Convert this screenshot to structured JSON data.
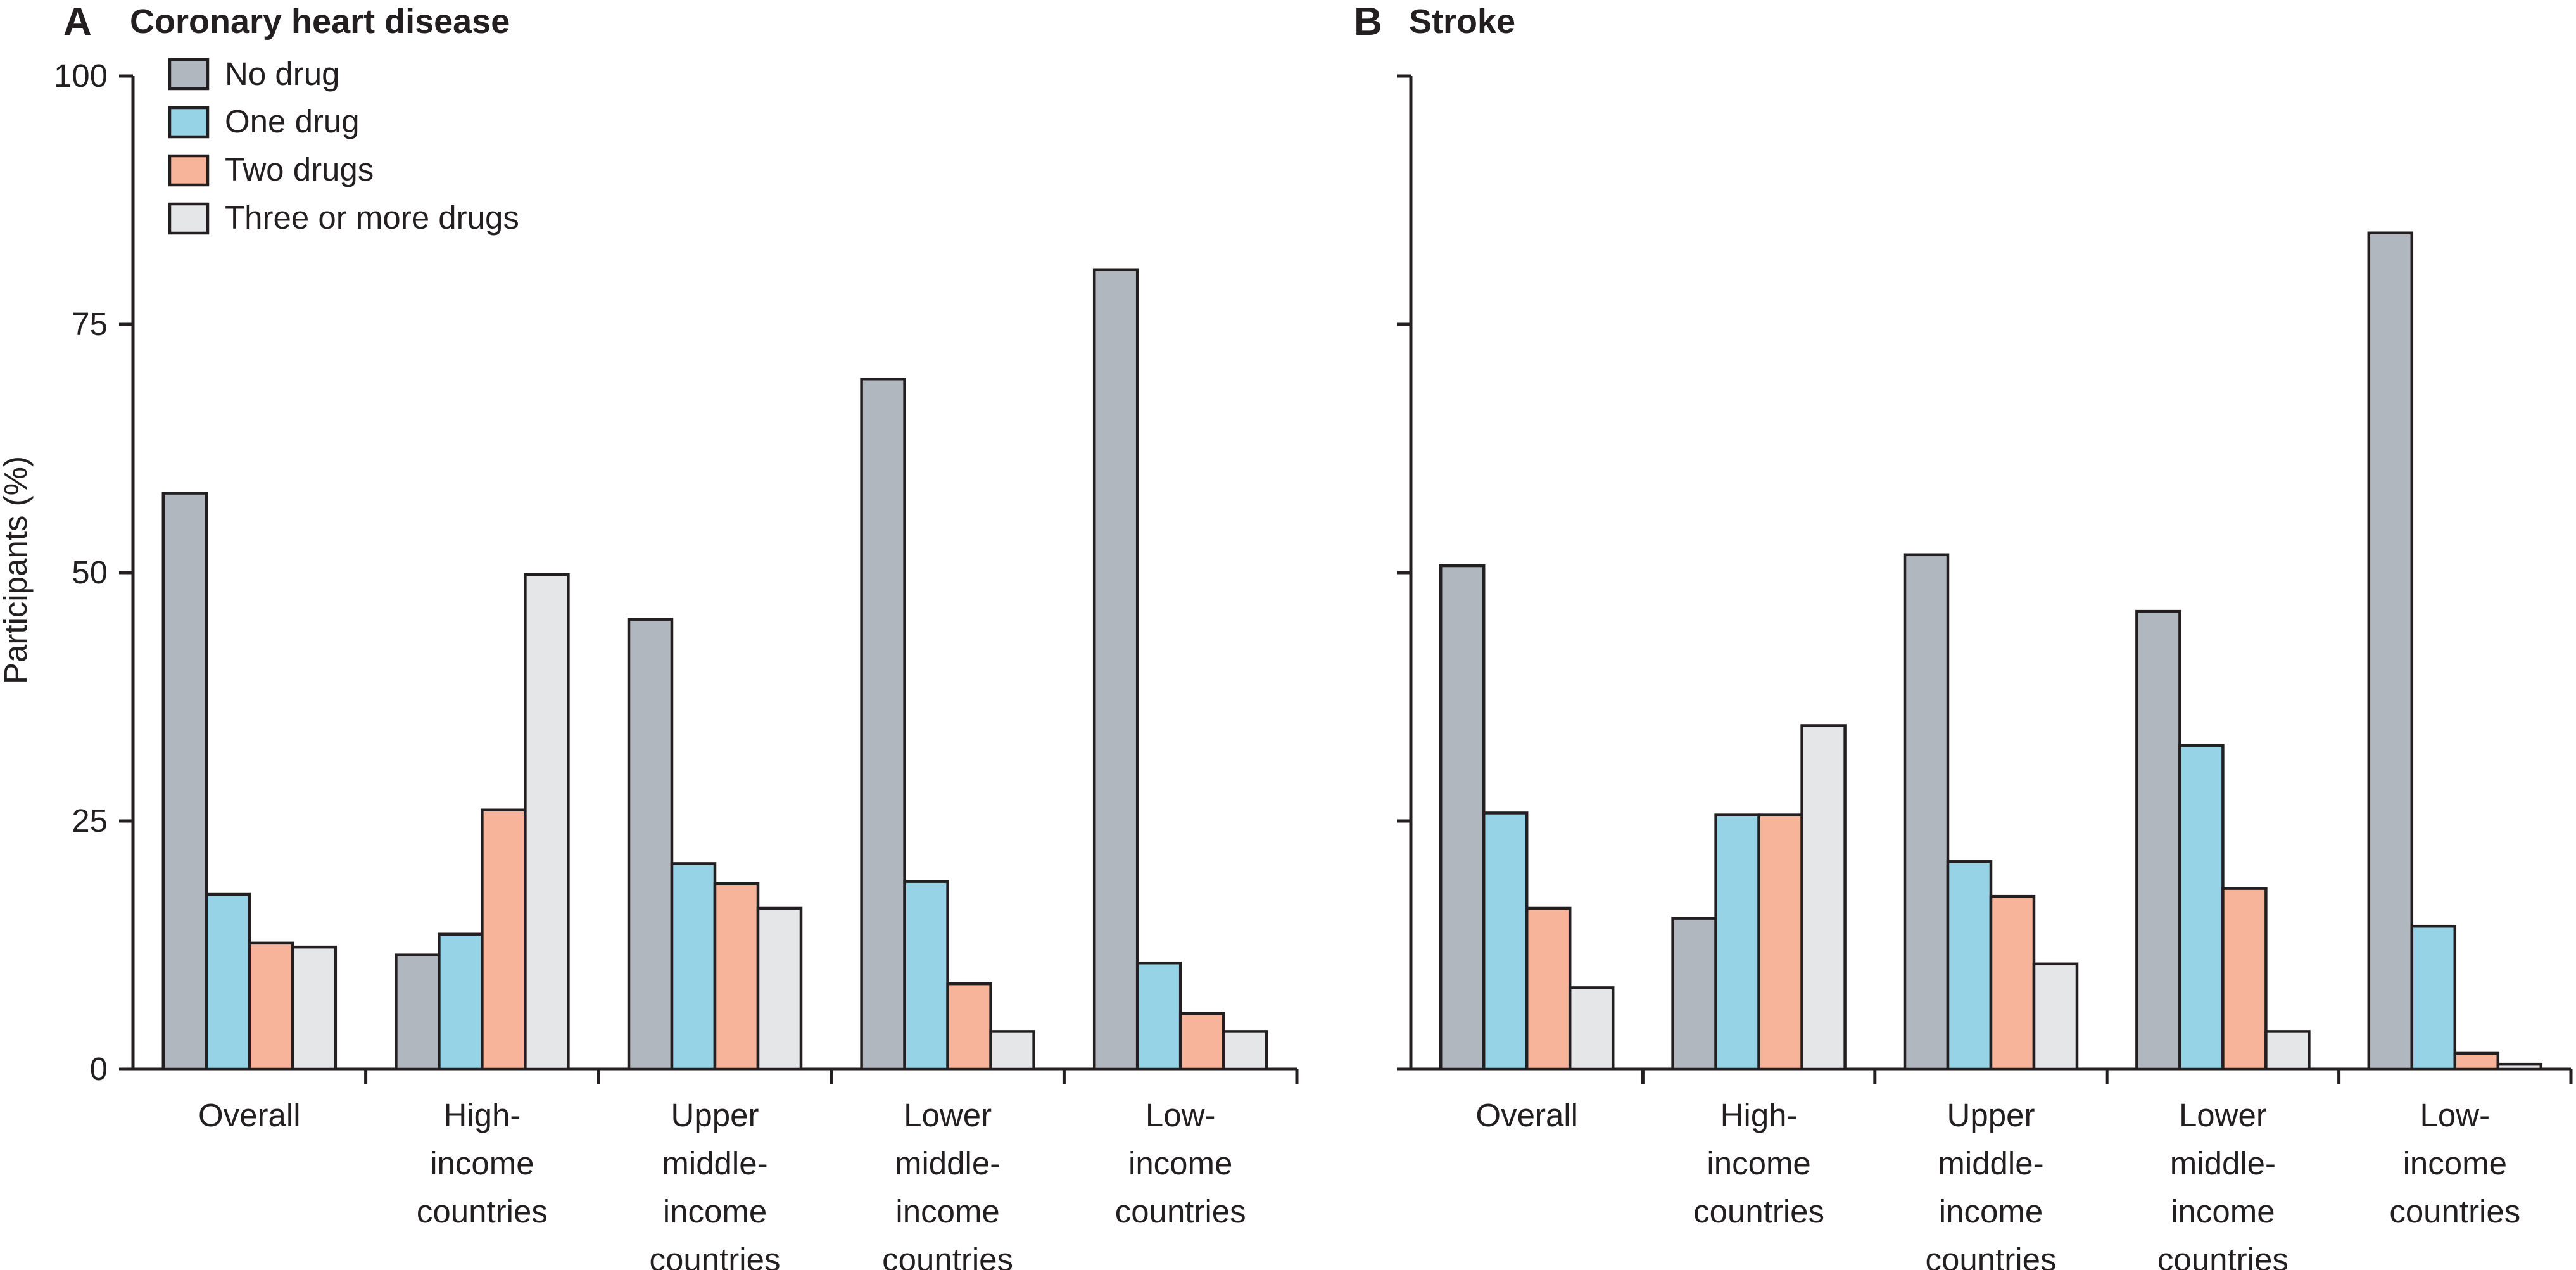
{
  "series_names": [
    "No drug",
    "One drug",
    "Two drugs",
    "Three or more drugs"
  ],
  "series_colors": [
    "#b0b7bf",
    "#97d3e6",
    "#f7b49a",
    "#e4e6e8"
  ],
  "y_axis": {
    "label": "Participants (%)",
    "ticks": [
      0,
      25,
      50,
      75,
      100
    ],
    "tick_labels": [
      "0",
      "25",
      "50",
      "75",
      "100"
    ]
  },
  "chart_data": [
    {
      "type": "bar",
      "panel": "A",
      "title": "Coronary heart disease",
      "ylabel": "Participants (%)",
      "ylim": [
        0,
        100
      ],
      "legend": "top-left",
      "grid": false,
      "categories": [
        [
          "Overall"
        ],
        [
          "High-",
          "income",
          "countries"
        ],
        [
          "Upper",
          "middle-",
          "income",
          "countries"
        ],
        [
          "Lower",
          "middle-",
          "income",
          "countries"
        ],
        [
          "Low-",
          "income",
          "countries"
        ]
      ],
      "series": [
        {
          "name": "No drug",
          "values": [
            58,
            11.5,
            45.3,
            69.5,
            80.5
          ]
        },
        {
          "name": "One drug",
          "values": [
            17.6,
            13.6,
            20.7,
            18.9,
            10.7
          ]
        },
        {
          "name": "Two drugs",
          "values": [
            12.7,
            26.1,
            18.7,
            8.6,
            5.6
          ]
        },
        {
          "name": "Three or more drugs",
          "values": [
            12.3,
            49.8,
            16.2,
            3.8,
            3.8
          ]
        }
      ]
    },
    {
      "type": "bar",
      "panel": "B",
      "title": "Stroke",
      "ylabel": "",
      "ylim": [
        0,
        100
      ],
      "grid": false,
      "categories": [
        [
          "Overall"
        ],
        [
          "High-",
          "income",
          "countries"
        ],
        [
          "Upper",
          "middle-",
          "income",
          "countries"
        ],
        [
          "Lower",
          "middle-",
          "income",
          "countries"
        ],
        [
          "Low-",
          "income",
          "countries"
        ]
      ],
      "series": [
        {
          "name": "No drug",
          "values": [
            50.7,
            15.2,
            51.8,
            46.1,
            84.2
          ]
        },
        {
          "name": "One drug",
          "values": [
            25.8,
            25.6,
            20.9,
            32.6,
            14.4
          ]
        },
        {
          "name": "Two drugs",
          "values": [
            16.2,
            25.6,
            17.4,
            18.2,
            1.6
          ]
        },
        {
          "name": "Three or more drugs",
          "values": [
            8.2,
            34.6,
            10.6,
            3.8,
            0.5
          ]
        }
      ]
    }
  ]
}
